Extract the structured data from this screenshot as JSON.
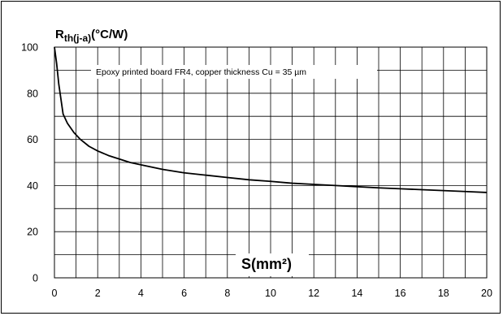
{
  "chart_data": {
    "type": "line",
    "title": "",
    "ylabel_main": "R",
    "ylabel_sub": "th(j-a)",
    "ylabel_unit": "(°C/W)",
    "xlabel": "S(mm²)",
    "annotation": "Epoxy printed board FR4, copper thickness Cu = 35 µm",
    "xlim": [
      0,
      20
    ],
    "ylim": [
      0,
      100
    ],
    "x_ticks": [
      0,
      2,
      4,
      6,
      8,
      10,
      12,
      14,
      16,
      18,
      20
    ],
    "y_ticks": [
      0,
      20,
      40,
      60,
      80,
      100
    ],
    "x_grid_step": 1,
    "y_grid_step": 10,
    "grid": true,
    "series": [
      {
        "name": "",
        "x": [
          0.0,
          0.1,
          0.2,
          0.4,
          0.6,
          0.9,
          1.2,
          1.6,
          2.0,
          2.5,
          3.0,
          3.5,
          4.0,
          5.0,
          6.0,
          7.0,
          8.0,
          9.0,
          10.0,
          11.0,
          12.0,
          13.0,
          14.0,
          15.0,
          16.0,
          17.0,
          18.0,
          19.0,
          20.0
        ],
        "y": [
          100,
          93,
          84,
          71,
          67,
          63,
          60,
          57,
          55,
          53,
          51.5,
          50,
          49,
          47,
          45.5,
          44.5,
          43.5,
          42.5,
          41.8,
          41,
          40.5,
          40,
          39.5,
          39,
          38.6,
          38.2,
          37.8,
          37.4,
          37
        ]
      }
    ]
  }
}
